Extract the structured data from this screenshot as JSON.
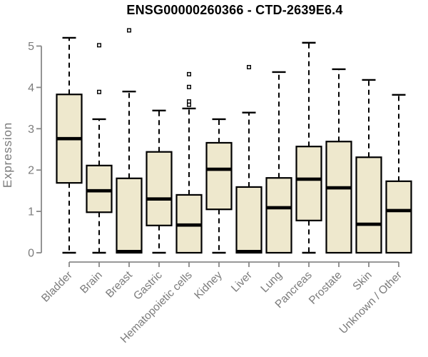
{
  "chart_data": {
    "type": "box",
    "title": "ENSG00000260366 - CTD-2639E6.4",
    "xlabel": "",
    "ylabel": "Expression",
    "ylim": [
      0,
      5
    ],
    "yticks": [
      0,
      1,
      2,
      3,
      4,
      5
    ],
    "grid": false,
    "legend": null,
    "categories": [
      "Bladder",
      "Brain",
      "Breast",
      "Gastric",
      "Hematopoietic cells",
      "Kidney",
      "Liver",
      "Lung",
      "Pancreas",
      "Prostate",
      "Skin",
      "Unknown / Other"
    ],
    "series": [
      {
        "name": "Bladder",
        "whisker_low": 0,
        "q1": 1.69,
        "median": 2.76,
        "q3": 3.83,
        "whisker_high": 5.2,
        "outliers": []
      },
      {
        "name": "Brain",
        "whisker_low": 0,
        "q1": 0.98,
        "median": 1.5,
        "q3": 2.11,
        "whisker_high": 3.23,
        "outliers": [
          3.89,
          5.02
        ]
      },
      {
        "name": "Breast",
        "whisker_low": 0,
        "q1": 0.0,
        "median": 0.03,
        "q3": 1.8,
        "whisker_high": 3.9,
        "outliers": [
          5.38
        ]
      },
      {
        "name": "Gastric",
        "whisker_low": 0,
        "q1": 0.66,
        "median": 1.3,
        "q3": 2.44,
        "whisker_high": 3.44,
        "outliers": []
      },
      {
        "name": "Hematopoietic cells",
        "whisker_low": 0,
        "q1": 0.0,
        "median": 0.67,
        "q3": 1.4,
        "whisker_high": 3.49,
        "outliers": [
          3.58,
          3.66,
          4.01,
          4.32
        ]
      },
      {
        "name": "Kidney",
        "whisker_low": 0,
        "q1": 1.05,
        "median": 2.02,
        "q3": 2.66,
        "whisker_high": 3.23,
        "outliers": []
      },
      {
        "name": "Liver",
        "whisker_low": 0,
        "q1": 0.0,
        "median": 0.03,
        "q3": 1.59,
        "whisker_high": 3.39,
        "outliers": [
          4.49
        ]
      },
      {
        "name": "Lung",
        "whisker_low": 0,
        "q1": 0.0,
        "median": 1.09,
        "q3": 1.81,
        "whisker_high": 4.37,
        "outliers": []
      },
      {
        "name": "Pancreas",
        "whisker_low": 0,
        "q1": 0.78,
        "median": 1.78,
        "q3": 2.57,
        "whisker_high": 5.08,
        "outliers": []
      },
      {
        "name": "Prostate",
        "whisker_low": 0,
        "q1": 0.0,
        "median": 1.57,
        "q3": 2.69,
        "whisker_high": 4.44,
        "outliers": []
      },
      {
        "name": "Skin",
        "whisker_low": 0,
        "q1": 0.0,
        "median": 0.69,
        "q3": 2.31,
        "whisker_high": 4.18,
        "outliers": []
      },
      {
        "name": "Unknown / Other",
        "whisker_low": 0,
        "q1": 0.0,
        "median": 1.02,
        "q3": 1.73,
        "whisker_high": 3.82,
        "outliers": []
      }
    ],
    "style": {
      "background": "#ffffff",
      "box_fill": "#EEE8CD",
      "box_border": "#000000",
      "median_color": "#000000",
      "whisker_color": "#000000",
      "outlier_shape": "open-square",
      "outlier_fill": "#ffffff",
      "outlier_border": "#000000",
      "axis_line_color": "#898989",
      "tick_label_color": "#7b7b7b",
      "title_color": "#000000"
    }
  }
}
